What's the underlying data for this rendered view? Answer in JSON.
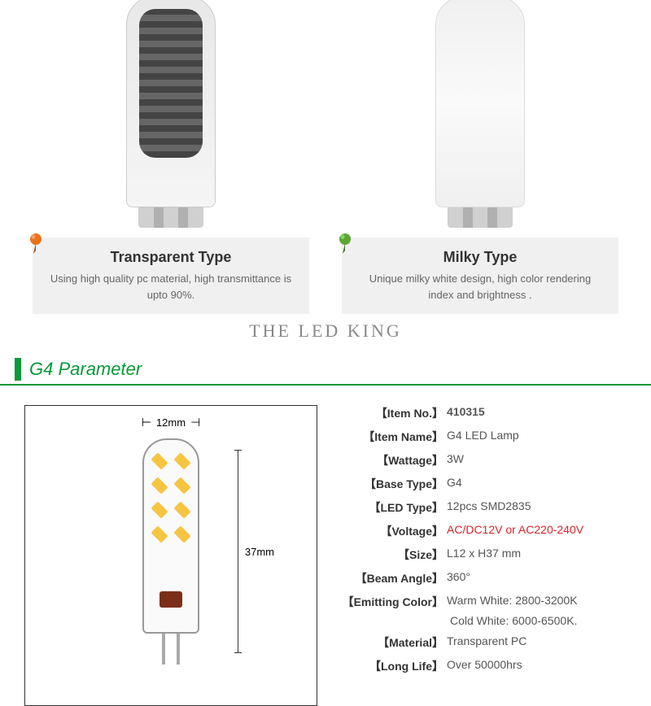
{
  "types": {
    "transparent": {
      "title": "Transparent Type",
      "desc": "Using high quality pc material, high transmittance is upto 90%.",
      "pin_color": "#e8731a"
    },
    "milky": {
      "title": "Milky Type",
      "desc": "Unique milky white design, high color rendering index and brightness .",
      "pin_color": "#5aa832"
    }
  },
  "watermark": "THE LED KING",
  "section_title": "G4 Parameter",
  "colors": {
    "accent_green": "#0a9938",
    "highlight_red": "#d9252a"
  },
  "diagram": {
    "width_label": "12mm",
    "height_label": "37mm"
  },
  "specs": [
    {
      "label": "Item No.",
      "value": "410315",
      "bold": true
    },
    {
      "label": "Item Name",
      "value": "G4 LED Lamp"
    },
    {
      "label": "Wattage",
      "value": "3W"
    },
    {
      "label": "Base Type",
      "value": "G4"
    },
    {
      "label": "LED Type",
      "value": "12pcs SMD2835"
    },
    {
      "label": "Voltage",
      "value": "AC/DC12V or AC220-240V",
      "highlight": true
    },
    {
      "label": "Size",
      "value": "L12 x H37 mm"
    },
    {
      "label": "Beam Angle",
      "value": "360°"
    },
    {
      "label": "Emitting Color",
      "value": "Warm White: 2800-3200K",
      "sub": "Cold White: 6000-6500K."
    },
    {
      "label": "Material",
      "value": "Transparent PC"
    },
    {
      "label": "Long Life",
      "value": "Over 50000hrs"
    }
  ]
}
